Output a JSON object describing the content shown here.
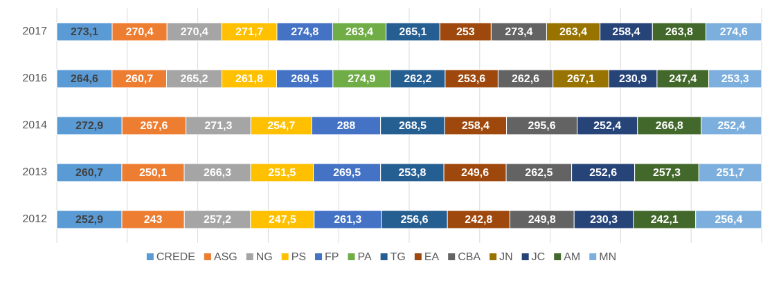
{
  "chart_data": {
    "type": "bar",
    "orientation": "horizontal",
    "stack": "percent",
    "categories": [
      "2017",
      "2016",
      "2014",
      "2013",
      "2012"
    ],
    "xlim": [
      0,
      100
    ],
    "xticks": [
      0,
      10,
      20,
      30,
      40,
      50,
      60,
      70,
      80,
      90,
      100
    ],
    "grid": true,
    "legend": "bottom",
    "series": [
      {
        "name": "CREDE",
        "color": "#5b9bd5",
        "values": [
          273.1,
          264.6,
          272.9,
          260.7,
          252.9
        ],
        "value_labels": [
          "273,1",
          "264,6",
          "272,9",
          "260,7",
          "252,9"
        ]
      },
      {
        "name": "ASG",
        "color": "#ed7d31",
        "values": [
          270.4,
          260.7,
          267.6,
          250.1,
          243
        ],
        "value_labels": [
          "270,4",
          "260,7",
          "267,6",
          "250,1",
          "243"
        ]
      },
      {
        "name": "NG",
        "color": "#a5a5a5",
        "values": [
          270.4,
          265.2,
          271.3,
          266.3,
          257.2
        ],
        "value_labels": [
          "270,4",
          "265,2",
          "271,3",
          "266,3",
          "257,2"
        ]
      },
      {
        "name": "PS",
        "color": "#ffc000",
        "values": [
          271.7,
          261.8,
          254.7,
          251.5,
          247.5
        ],
        "value_labels": [
          "271,7",
          "261,8",
          "254,7",
          "251,5",
          "247,5"
        ]
      },
      {
        "name": "FP",
        "color": "#4472c4",
        "values": [
          274.8,
          269.5,
          288,
          269.5,
          261.3
        ],
        "value_labels": [
          "274,8",
          "269,5",
          "288",
          "269,5",
          "261,3"
        ]
      },
      {
        "name": "PA",
        "color": "#70ad47",
        "values": [
          263.4,
          274.9,
          null,
          null,
          null
        ],
        "value_labels": [
          "263,4",
          "274,9",
          null,
          null,
          null
        ]
      },
      {
        "name": "TG",
        "color": "#255e91",
        "values": [
          265.1,
          262.2,
          268.5,
          253.8,
          256.6
        ],
        "value_labels": [
          "265,1",
          "262,2",
          "268,5",
          "253,8",
          "256,6"
        ]
      },
      {
        "name": "EA",
        "color": "#9e480e",
        "values": [
          253,
          253.6,
          258.4,
          249.6,
          242.8
        ],
        "value_labels": [
          "253",
          "253,6",
          "258,4",
          "249,6",
          "242,8"
        ]
      },
      {
        "name": "CBA",
        "color": "#636363",
        "values": [
          273.4,
          262.6,
          295.6,
          262.5,
          249.8
        ],
        "value_labels": [
          "273,4",
          "262,6",
          "295,6",
          "262,5",
          "249,8"
        ]
      },
      {
        "name": "JN",
        "color": "#997300",
        "values": [
          263.4,
          267.1,
          null,
          null,
          null
        ],
        "value_labels": [
          "263,4",
          "267,1",
          null,
          null,
          null
        ]
      },
      {
        "name": "JC",
        "color": "#264478",
        "values": [
          258.4,
          230.9,
          252.4,
          252.6,
          230.3
        ],
        "value_labels": [
          "258,4",
          "230,9",
          "252,4",
          "252,6",
          "230,3"
        ]
      },
      {
        "name": "AM",
        "color": "#43682b",
        "values": [
          263.8,
          247.4,
          266.8,
          257.3,
          242.1
        ],
        "value_labels": [
          "263,8",
          "247,4",
          "266,8",
          "257,3",
          "242,1"
        ]
      },
      {
        "name": "MN",
        "color": "#7cafdd",
        "values": [
          274.6,
          253.3,
          252.4,
          251.7,
          256.4
        ],
        "value_labels": [
          "274,6",
          "253,3",
          "252,4",
          "251,7",
          "256,4"
        ]
      }
    ]
  }
}
